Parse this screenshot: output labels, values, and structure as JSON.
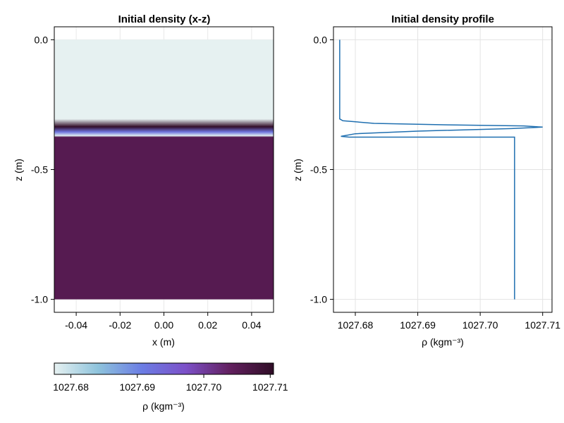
{
  "chart_data": [
    {
      "type": "heatmap",
      "title": "Initial density (x-z)",
      "xlabel": "x (m)",
      "ylabel": "z (m)",
      "xlim": [
        -0.05,
        0.05
      ],
      "ylim": [
        -1.05,
        0.05
      ],
      "xticks": [
        "-0.04",
        "-0.02",
        "0.00",
        "0.02",
        "0.04"
      ],
      "yticks": [
        "0.0",
        "-0.5",
        "-1.0"
      ],
      "grid": true,
      "colormap": "dense",
      "colormap_stops": [
        "#e6f1f1",
        "#8ec3dc",
        "#6b7de4",
        "#7c50c8",
        "#62205f",
        "#2f0d26"
      ],
      "field": {
        "x_range": [
          -0.05,
          0.05
        ],
        "z_range": [
          -1.0,
          0.0
        ],
        "description_points": [
          {
            "z": 0.0,
            "rho": 1027.6775
          },
          {
            "z": -0.305,
            "rho": 1027.6775
          },
          {
            "z": -0.335,
            "rho": 1027.71
          },
          {
            "z": -0.355,
            "rho": 1027.692
          },
          {
            "z": -0.37,
            "rho": 1027.678
          },
          {
            "z": -0.375,
            "rho": 1027.7055
          },
          {
            "z": -1.0,
            "rho": 1027.7055
          }
        ]
      },
      "colorbar": {
        "label": "ρ (kgm⁻³)",
        "range": [
          1027.6775,
          1027.7105
        ],
        "ticks": [
          "1027.68",
          "1027.69",
          "1027.70",
          "1027.71"
        ]
      }
    },
    {
      "type": "line",
      "title": "Initial density profile",
      "xlabel": "ρ (kgm⁻³)",
      "ylabel": "z (m)",
      "xlim": [
        1027.6765,
        1027.7115
      ],
      "ylim": [
        -1.05,
        0.05
      ],
      "xticks": [
        "1027.68",
        "1027.69",
        "1027.70",
        "1027.71"
      ],
      "yticks": [
        "0.0",
        "-0.5",
        "-1.0"
      ],
      "grid": true,
      "line_color": "#1f6fb0",
      "series": [
        {
          "x": [
            1027.6775,
            1027.6775,
            1027.678,
            1027.683,
            1027.695,
            1027.707,
            1027.71,
            1027.705,
            1027.69,
            1027.68,
            1027.6777,
            1027.679,
            1027.7055,
            1027.7055
          ],
          "y": [
            0.0,
            -0.305,
            -0.312,
            -0.322,
            -0.328,
            -0.332,
            -0.3365,
            -0.342,
            -0.352,
            -0.362,
            -0.372,
            -0.375,
            -0.375,
            -1.0
          ]
        }
      ]
    }
  ]
}
